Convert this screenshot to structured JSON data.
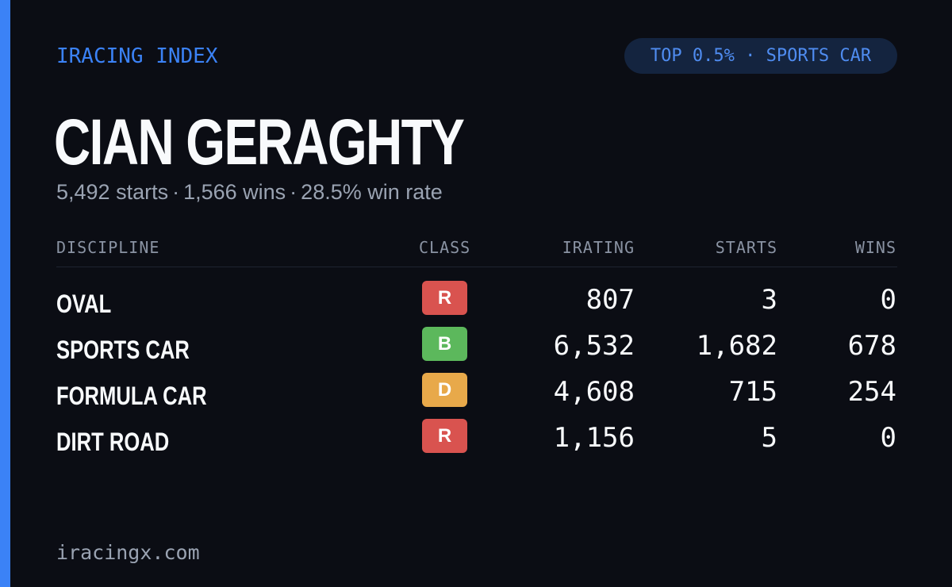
{
  "colors": {
    "background": "#0b0d14",
    "accent": "#3b82f6",
    "class_r": "#d9534f",
    "class_b": "#5cb85c",
    "class_d": "#e8a94a"
  },
  "brand": {
    "label": "IRACING INDEX"
  },
  "rank_pill": {
    "label": "TOP 0.5% · SPORTS CAR"
  },
  "driver": {
    "name": "CIAN GERAGHTY",
    "starts_text": "5,492 starts",
    "wins_text": "1,566 wins",
    "win_rate_text": "28.5% win rate",
    "separator": "·"
  },
  "table": {
    "headers": {
      "discipline": "DISCIPLINE",
      "class": "CLASS",
      "irating": "IRATING",
      "starts": "STARTS",
      "wins": "WINS"
    },
    "rows": [
      {
        "discipline": "OVAL",
        "class": "R",
        "class_color": "#d9534f",
        "irating": "807",
        "starts": "3",
        "wins": "0"
      },
      {
        "discipline": "SPORTS CAR",
        "class": "B",
        "class_color": "#5cb85c",
        "irating": "6,532",
        "starts": "1,682",
        "wins": "678"
      },
      {
        "discipline": "FORMULA CAR",
        "class": "D",
        "class_color": "#e8a94a",
        "irating": "4,608",
        "starts": "715",
        "wins": "254"
      },
      {
        "discipline": "DIRT ROAD",
        "class": "R",
        "class_color": "#d9534f",
        "irating": "1,156",
        "starts": "5",
        "wins": "0"
      }
    ]
  },
  "footer": {
    "site": "iracingx.com"
  }
}
